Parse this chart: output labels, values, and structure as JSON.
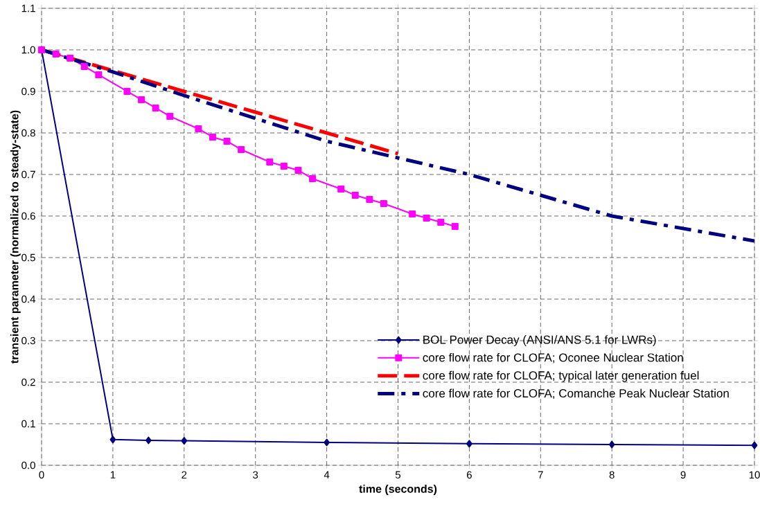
{
  "chart_data": {
    "type": "line",
    "xlabel": "time (seconds)",
    "ylabel": "transient parameter (normalized to steady-state)",
    "xlim": [
      0,
      10
    ],
    "ylim": [
      0,
      1.1
    ],
    "xticks": [
      0,
      1,
      2,
      3,
      4,
      5,
      6,
      7,
      8,
      9,
      10
    ],
    "yticks": [
      {
        "value": 0,
        "label": "0.0"
      },
      0.1,
      0.2,
      0.3,
      0.4,
      0.5,
      0.6,
      0.7,
      0.8,
      0.9,
      {
        "value": 1,
        "label": "1.0"
      },
      1.1
    ],
    "grid": true,
    "legend": "right",
    "series": [
      {
        "name": "BOL Power Decay (ANSI/ANS 5.1 for LWRs)",
        "color": "#000080",
        "marker": "diamond",
        "line_style": "solid",
        "x": [
          0,
          1,
          1.5,
          2,
          4,
          6,
          8,
          10
        ],
        "values": [
          1.0,
          0.062,
          0.06,
          0.059,
          0.055,
          0.052,
          0.05,
          0.048
        ]
      },
      {
        "name": "core flow rate for CLOFA; Oconee Nuclear Station",
        "color": "#ff00ff",
        "marker": "square",
        "line_style": "solid",
        "x": [
          0,
          0.2,
          0.4,
          0.6,
          0.8,
          1.2,
          1.4,
          1.6,
          1.8,
          2.2,
          2.4,
          2.6,
          2.8,
          3.2,
          3.4,
          3.6,
          3.8,
          4.2,
          4.4,
          4.6,
          4.8,
          5.2,
          5.4,
          5.6,
          5.8
        ],
        "values": [
          1.0,
          0.99,
          0.98,
          0.96,
          0.94,
          0.9,
          0.88,
          0.86,
          0.84,
          0.81,
          0.79,
          0.78,
          0.76,
          0.73,
          0.72,
          0.71,
          0.69,
          0.665,
          0.65,
          0.64,
          0.63,
          0.605,
          0.595,
          0.585,
          0.575
        ]
      },
      {
        "name": "core flow rate for CLOFA; typical later generation fuel",
        "color": "#ff0000",
        "marker": "none",
        "line_style": "dashed",
        "x": [
          0,
          1,
          2,
          3,
          4,
          5
        ],
        "values": [
          1.0,
          0.95,
          0.9,
          0.85,
          0.8,
          0.75
        ]
      },
      {
        "name": "core flow rate for CLOFA; Comanche Peak Nuclear Station",
        "color": "#000080",
        "marker": "none",
        "line_style": "dashdot",
        "x": [
          0,
          1,
          2,
          3,
          4,
          5,
          6,
          8,
          10
        ],
        "values": [
          1.0,
          0.947,
          0.89,
          0.835,
          0.78,
          0.74,
          0.7,
          0.6,
          0.54
        ]
      }
    ]
  }
}
